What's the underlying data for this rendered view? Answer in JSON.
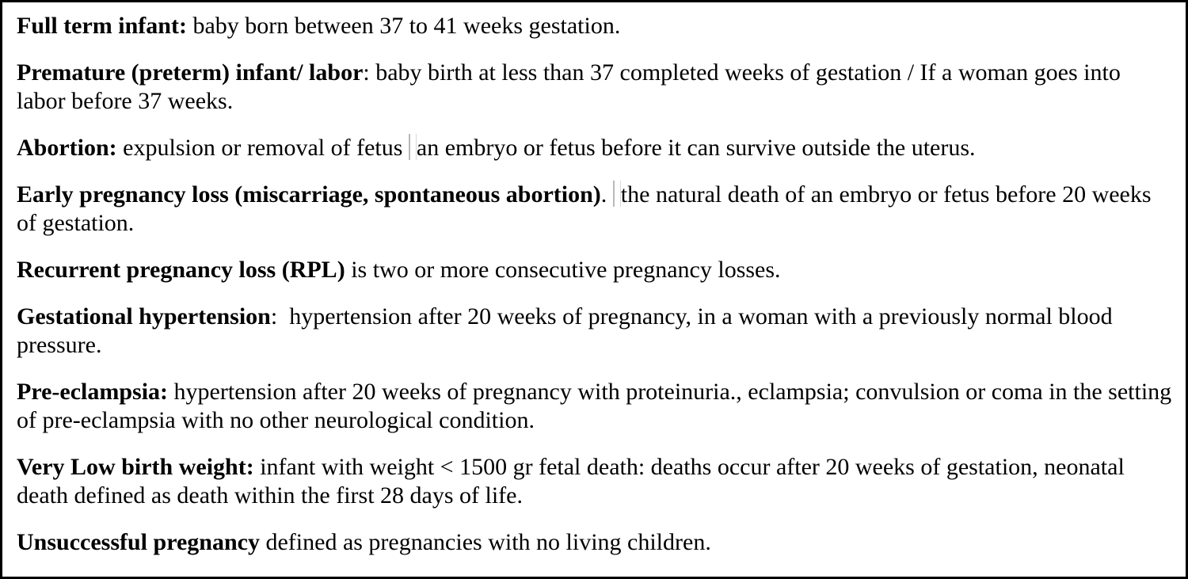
{
  "box": {
    "background": "#ffffff",
    "border_color": "#000000",
    "text_color": "#000000"
  },
  "definitions": [
    {
      "term": "Full term infant:",
      "def": " baby born between 37 to 41 weeks gestation."
    },
    {
      "term": "Premature (preterm) infant/ labor",
      "def": ": baby birth at less than 37 completed weeks of gestation / If a woman goes into labor before 37 weeks."
    },
    {
      "term": "Abortion:",
      "def_a": " expulsion or removal of fetus ",
      "def_b": "an embryo or fetus before it can survive outside the uterus."
    },
    {
      "term": "Early pregnancy loss (miscarriage, spontaneous abortion)",
      "def_a": ". ",
      "def_b": "the natural death of an embryo or fetus before 20 weeks of gestation."
    },
    {
      "term": "Recurrent pregnancy loss (RPL)",
      "def": " is two or more consecutive pregnancy losses."
    },
    {
      "term": "Gestational hypertension",
      "def": ":  hypertension after 20 weeks of pregnancy, in a woman with a previously normal blood pressure."
    },
    {
      "term": "Pre-eclampsia:",
      "def": " hypertension after 20 weeks of pregnancy with proteinuria., eclampsia; convulsion or coma in the setting of pre-eclampsia with no other neurological condition."
    },
    {
      "term": "Very Low birth weight:",
      "def": " infant with weight < 1500 gr fetal death: deaths occur after 20 weeks of gestation, neonatal death defined as death within the first 28 days of life."
    },
    {
      "term": "Unsuccessful pregnancy",
      "def": " defined as pregnancies with no living children."
    }
  ]
}
